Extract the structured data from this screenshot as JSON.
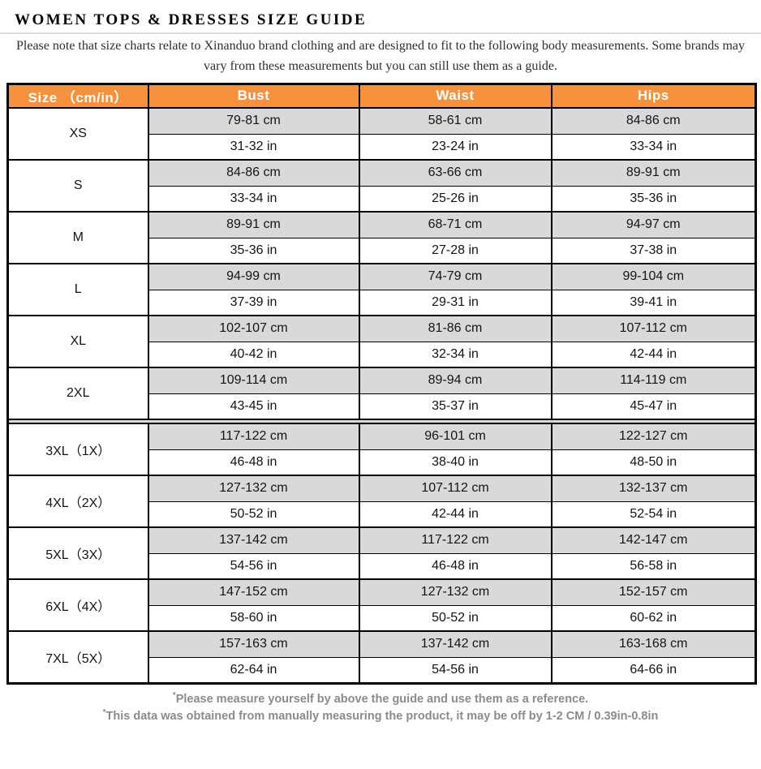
{
  "page": {
    "title": "WOMEN TOPS & DRESSES SIZE GUIDE",
    "intro": "Please note that size charts relate to Xinanduo brand clothing and are designed to fit to the following body measurements. Some brands may vary from these measurements but you can still use them as a guide."
  },
  "colors": {
    "header_orange": "#f6923d",
    "row_gray": "#d9d9d9",
    "border_black": "#000000",
    "footer_gray": "#8b8b8b"
  },
  "table": {
    "columns": [
      "Size （cm/in）",
      "Bust",
      "Waist",
      "Hips"
    ],
    "sizes": [
      {
        "label": "XS",
        "bust_cm": "79-81 cm",
        "waist_cm": "58-61 cm",
        "hips_cm": "84-86 cm",
        "bust_in": "31-32 in",
        "waist_in": "23-24 in",
        "hips_in": "33-34 in"
      },
      {
        "label": "S",
        "bust_cm": "84-86 cm",
        "waist_cm": "63-66 cm",
        "hips_cm": "89-91 cm",
        "bust_in": "33-34 in",
        "waist_in": "25-26 in",
        "hips_in": "35-36 in"
      },
      {
        "label": "M",
        "bust_cm": "89-91 cm",
        "waist_cm": "68-71 cm",
        "hips_cm": "94-97 cm",
        "bust_in": "35-36 in",
        "waist_in": "27-28 in",
        "hips_in": "37-38 in"
      },
      {
        "label": "L",
        "bust_cm": "94-99 cm",
        "waist_cm": "74-79 cm",
        "hips_cm": "99-104 cm",
        "bust_in": "37-39 in",
        "waist_in": "29-31 in",
        "hips_in": "39-41 in"
      },
      {
        "label": "XL",
        "bust_cm": "102-107 cm",
        "waist_cm": "81-86 cm",
        "hips_cm": "107-112 cm",
        "bust_in": "40-42 in",
        "waist_in": "32-34 in",
        "hips_in": "42-44 in"
      },
      {
        "label": "2XL",
        "bust_cm": "109-114 cm",
        "waist_cm": "89-94 cm",
        "hips_cm": "114-119 cm",
        "bust_in": "43-45 in",
        "waist_in": "35-37 in",
        "hips_in": "45-47 in"
      },
      {
        "label": "3XL（1X）",
        "divider_before": true,
        "bust_cm": "117-122 cm",
        "waist_cm": "96-101 cm",
        "hips_cm": "122-127 cm",
        "bust_in": "46-48 in",
        "waist_in": "38-40 in",
        "hips_in": "48-50 in"
      },
      {
        "label": "4XL（2X）",
        "bust_cm": "127-132 cm",
        "waist_cm": "107-112 cm",
        "hips_cm": "132-137 cm",
        "bust_in": "50-52 in",
        "waist_in": "42-44 in",
        "hips_in": "52-54 in"
      },
      {
        "label": "5XL（3X）",
        "bust_cm": "137-142 cm",
        "waist_cm": "117-122 cm",
        "hips_cm": "142-147 cm",
        "bust_in": "54-56 in",
        "waist_in": "46-48 in",
        "hips_in": "56-58 in"
      },
      {
        "label": "6XL（4X）",
        "bust_cm": "147-152 cm",
        "waist_cm": "127-132 cm",
        "hips_cm": "152-157 cm",
        "bust_in": "58-60 in",
        "waist_in": "50-52 in",
        "hips_in": "60-62 in"
      },
      {
        "label": "7XL（5X）",
        "bust_cm": "157-163 cm",
        "waist_cm": "137-142 cm",
        "hips_cm": "163-168 cm",
        "bust_in": "62-64 in",
        "waist_in": "54-56 in",
        "hips_in": "64-66 in"
      }
    ]
  },
  "footer": {
    "note1_mark": "*",
    "note1": "Please measure yourself by above the guide and use them as a reference.",
    "note2_mark": "*",
    "note2": "This data was obtained from manually measuring the product, it may be off by 1-2 CM / 0.39in-0.8in"
  }
}
